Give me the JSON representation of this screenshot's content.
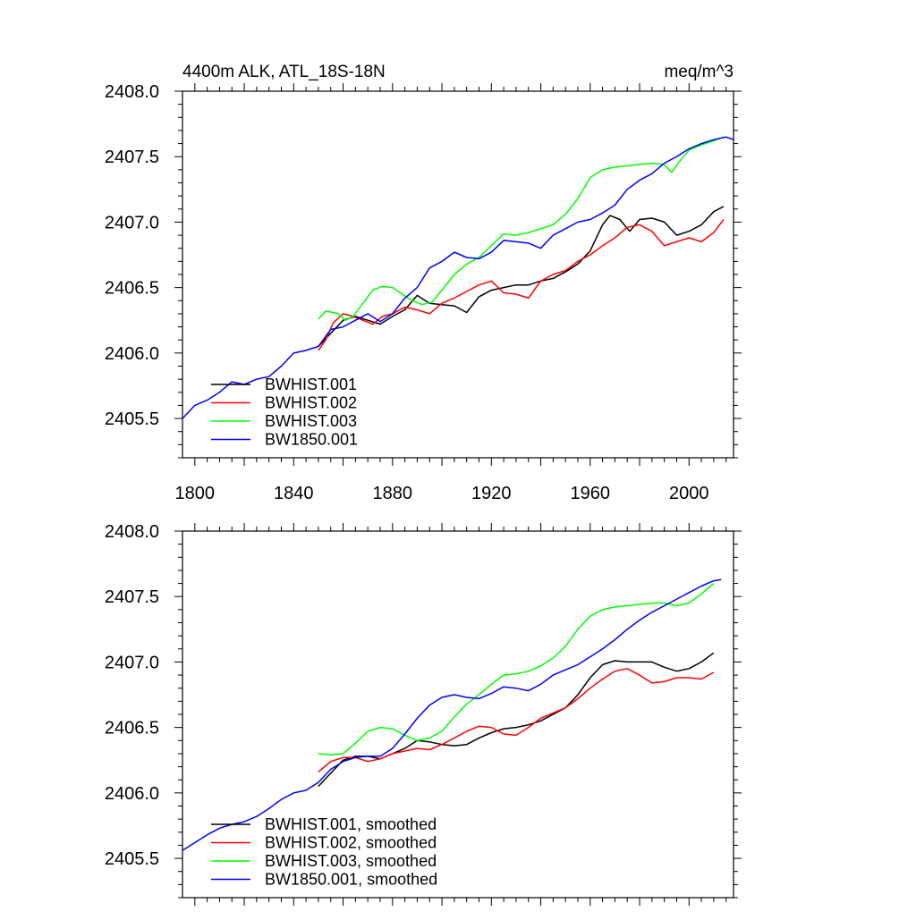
{
  "chart_data": [
    {
      "type": "line",
      "title": "4400m ALK, ATL_18S-18N",
      "units": "meq/m^3",
      "xlabel": "",
      "ylabel": "",
      "xlim": [
        1795,
        2018
      ],
      "ylim": [
        2405.2,
        2408.0
      ],
      "x_ticks": [
        "1800",
        "1840",
        "1880",
        "1920",
        "1960",
        "2000"
      ],
      "y_ticks": [
        "2408.0",
        "2407.5",
        "2407.0",
        "2406.5",
        "2406.0",
        "2405.5"
      ],
      "legend": "bottom-left",
      "grid": false,
      "series": [
        {
          "name": "BWHIST.001",
          "color": "#000000",
          "x": [
            1850,
            1855,
            1860,
            1865,
            1870,
            1875,
            1880,
            1885,
            1890,
            1895,
            1900,
            1905,
            1910,
            1915,
            1920,
            1925,
            1930,
            1935,
            1940,
            1945,
            1950,
            1955,
            1960,
            1965,
            1968,
            1972,
            1976,
            1980,
            1985,
            1990,
            1995,
            2000,
            2005,
            2010,
            2014
          ],
          "y": [
            2406.05,
            2406.15,
            2406.25,
            2406.28,
            2406.25,
            2406.22,
            2406.28,
            2406.33,
            2406.44,
            2406.38,
            2406.37,
            2406.36,
            2406.31,
            2406.43,
            2406.48,
            2406.5,
            2406.52,
            2406.52,
            2406.55,
            2406.57,
            2406.62,
            2406.68,
            2406.78,
            2406.98,
            2407.05,
            2407.02,
            2406.93,
            2407.02,
            2407.03,
            2407.0,
            2406.9,
            2406.93,
            2406.98,
            2407.08,
            2407.12
          ]
        },
        {
          "name": "BWHIST.002",
          "color": "#ff0000",
          "x": [
            1850,
            1853,
            1856,
            1860,
            1864,
            1868,
            1872,
            1876,
            1880,
            1885,
            1890,
            1895,
            1900,
            1905,
            1910,
            1915,
            1920,
            1925,
            1930,
            1935,
            1940,
            1945,
            1950,
            1955,
            1960,
            1965,
            1970,
            1975,
            1980,
            1985,
            1990,
            1995,
            2000,
            2005,
            2010,
            2014
          ],
          "y": [
            2406.02,
            2406.1,
            2406.23,
            2406.3,
            2406.28,
            2406.25,
            2406.22,
            2406.28,
            2406.3,
            2406.35,
            2406.33,
            2406.3,
            2406.38,
            2406.42,
            2406.47,
            2406.52,
            2406.55,
            2406.46,
            2406.45,
            2406.42,
            2406.55,
            2406.6,
            2406.63,
            2406.7,
            2406.75,
            2406.82,
            2406.88,
            2406.96,
            2406.98,
            2406.93,
            2406.82,
            2406.85,
            2406.88,
            2406.85,
            2406.92,
            2407.02
          ]
        },
        {
          "name": "BWHIST.003",
          "color": "#00ff00",
          "x": [
            1850,
            1853,
            1856,
            1858,
            1861,
            1864,
            1868,
            1872,
            1876,
            1880,
            1884,
            1888,
            1892,
            1896,
            1900,
            1905,
            1910,
            1915,
            1920,
            1925,
            1930,
            1935,
            1940,
            1945,
            1950,
            1955,
            1960,
            1965,
            1970,
            1975,
            1980,
            1985,
            1990,
            1993,
            1996,
            2000,
            2005,
            2010,
            2014
          ],
          "y": [
            2406.26,
            2406.32,
            2406.31,
            2406.3,
            2406.25,
            2406.28,
            2406.38,
            2406.48,
            2406.51,
            2406.5,
            2406.45,
            2406.4,
            2406.37,
            2406.39,
            2406.48,
            2406.6,
            2406.68,
            2406.73,
            2406.82,
            2406.91,
            2406.9,
            2406.92,
            2406.95,
            2406.98,
            2407.06,
            2407.18,
            2407.34,
            2407.4,
            2407.42,
            2407.43,
            2407.44,
            2407.45,
            2407.44,
            2407.38,
            2407.46,
            2407.55,
            2407.59,
            2407.62,
            2407.65
          ]
        },
        {
          "name": "BW1850.001",
          "color": "#0000ff",
          "x": [
            1795,
            1800,
            1805,
            1810,
            1815,
            1820,
            1825,
            1830,
            1835,
            1840,
            1845,
            1850,
            1855,
            1860,
            1865,
            1870,
            1875,
            1880,
            1885,
            1890,
            1895,
            1900,
            1905,
            1910,
            1915,
            1920,
            1925,
            1930,
            1935,
            1940,
            1945,
            1950,
            1955,
            1960,
            1965,
            1970,
            1975,
            1980,
            1985,
            1990,
            1995,
            2000,
            2005,
            2010,
            2015,
            2018
          ],
          "y": [
            2405.5,
            2405.6,
            2405.64,
            2405.7,
            2405.78,
            2405.76,
            2405.8,
            2405.82,
            2405.9,
            2406.0,
            2406.02,
            2406.05,
            2406.18,
            2406.2,
            2406.25,
            2406.3,
            2406.24,
            2406.3,
            2406.42,
            2406.5,
            2406.65,
            2406.7,
            2406.77,
            2406.73,
            2406.72,
            2406.77,
            2406.86,
            2406.85,
            2406.84,
            2406.8,
            2406.9,
            2406.95,
            2407.0,
            2407.02,
            2407.07,
            2407.13,
            2407.25,
            2407.32,
            2407.37,
            2407.45,
            2407.5,
            2407.56,
            2407.6,
            2407.63,
            2407.65,
            2407.63
          ]
        }
      ]
    },
    {
      "type": "line",
      "title": "",
      "xlabel": "",
      "ylabel": "",
      "xlim": [
        1795,
        2018
      ],
      "ylim": [
        2405.2,
        2408.0
      ],
      "y_ticks": [
        "2408.0",
        "2407.5",
        "2407.0",
        "2406.5",
        "2406.0",
        "2405.5"
      ],
      "legend": "bottom-left",
      "grid": false,
      "series": [
        {
          "name": "BWHIST.001, smoothed",
          "color": "#000000",
          "x": [
            1850,
            1855,
            1860,
            1865,
            1870,
            1875,
            1880,
            1885,
            1890,
            1895,
            1900,
            1905,
            1910,
            1915,
            1920,
            1925,
            1930,
            1935,
            1940,
            1945,
            1950,
            1955,
            1960,
            1965,
            1970,
            1975,
            1980,
            1985,
            1990,
            1995,
            2000,
            2005,
            2010
          ],
          "y": [
            2406.05,
            2406.15,
            2406.25,
            2406.28,
            2406.28,
            2406.26,
            2406.3,
            2406.34,
            2406.4,
            2406.39,
            2406.37,
            2406.36,
            2406.37,
            2406.42,
            2406.46,
            2406.49,
            2406.5,
            2406.52,
            2406.55,
            2406.6,
            2406.65,
            2406.75,
            2406.88,
            2406.98,
            2407.01,
            2407.0,
            2407.0,
            2407.0,
            2406.96,
            2406.93,
            2406.95,
            2407.0,
            2407.07
          ]
        },
        {
          "name": "BWHIST.002, smoothed",
          "color": "#ff0000",
          "x": [
            1850,
            1855,
            1860,
            1865,
            1870,
            1875,
            1880,
            1885,
            1890,
            1895,
            1900,
            1905,
            1910,
            1915,
            1920,
            1925,
            1930,
            1935,
            1940,
            1945,
            1950,
            1955,
            1960,
            1965,
            1970,
            1975,
            1980,
            1985,
            1990,
            1995,
            2000,
            2005,
            2010
          ],
          "y": [
            2406.16,
            2406.24,
            2406.27,
            2406.27,
            2406.24,
            2406.26,
            2406.3,
            2406.32,
            2406.34,
            2406.33,
            2406.37,
            2406.42,
            2406.47,
            2406.51,
            2406.5,
            2406.45,
            2406.44,
            2406.5,
            2406.57,
            2406.61,
            2406.65,
            2406.72,
            2406.8,
            2406.87,
            2406.93,
            2406.95,
            2406.9,
            2406.84,
            2406.85,
            2406.88,
            2406.88,
            2406.87,
            2406.92
          ]
        },
        {
          "name": "BWHIST.003, smoothed",
          "color": "#00ff00",
          "x": [
            1850,
            1855,
            1860,
            1865,
            1870,
            1875,
            1880,
            1885,
            1890,
            1895,
            1900,
            1905,
            1910,
            1915,
            1920,
            1925,
            1930,
            1935,
            1940,
            1945,
            1950,
            1955,
            1960,
            1965,
            1970,
            1975,
            1980,
            1985,
            1990,
            1995,
            2000,
            2005,
            2010
          ],
          "y": [
            2406.3,
            2406.29,
            2406.3,
            2406.38,
            2406.47,
            2406.5,
            2406.49,
            2406.44,
            2406.4,
            2406.42,
            2406.47,
            2406.58,
            2406.68,
            2406.75,
            2406.83,
            2406.9,
            2406.91,
            2406.93,
            2406.97,
            2407.03,
            2407.12,
            2407.25,
            2407.35,
            2407.4,
            2407.42,
            2407.43,
            2407.44,
            2407.45,
            2407.45,
            2407.43,
            2407.45,
            2407.52,
            2407.6
          ]
        },
        {
          "name": "BW1850.001, smoothed",
          "color": "#0000ff",
          "x": [
            1795,
            1800,
            1805,
            1810,
            1815,
            1820,
            1825,
            1830,
            1835,
            1840,
            1845,
            1850,
            1855,
            1860,
            1865,
            1870,
            1875,
            1880,
            1885,
            1890,
            1895,
            1900,
            1905,
            1910,
            1915,
            1920,
            1925,
            1930,
            1935,
            1940,
            1945,
            1950,
            1955,
            1960,
            1965,
            1970,
            1975,
            1980,
            1985,
            1990,
            1995,
            2000,
            2005,
            2010,
            2013
          ],
          "y": [
            2405.56,
            2405.62,
            2405.68,
            2405.73,
            2405.76,
            2405.78,
            2405.82,
            2405.88,
            2405.95,
            2406.0,
            2406.02,
            2406.08,
            2406.18,
            2406.24,
            2406.27,
            2406.28,
            2406.28,
            2406.34,
            2406.45,
            2406.57,
            2406.67,
            2406.73,
            2406.75,
            2406.73,
            2406.72,
            2406.76,
            2406.81,
            2406.8,
            2406.78,
            2406.83,
            2406.9,
            2406.94,
            2406.98,
            2407.04,
            2407.1,
            2407.17,
            2407.25,
            2407.32,
            2407.38,
            2407.43,
            2407.48,
            2407.53,
            2407.58,
            2407.62,
            2407.63
          ]
        }
      ]
    }
  ]
}
